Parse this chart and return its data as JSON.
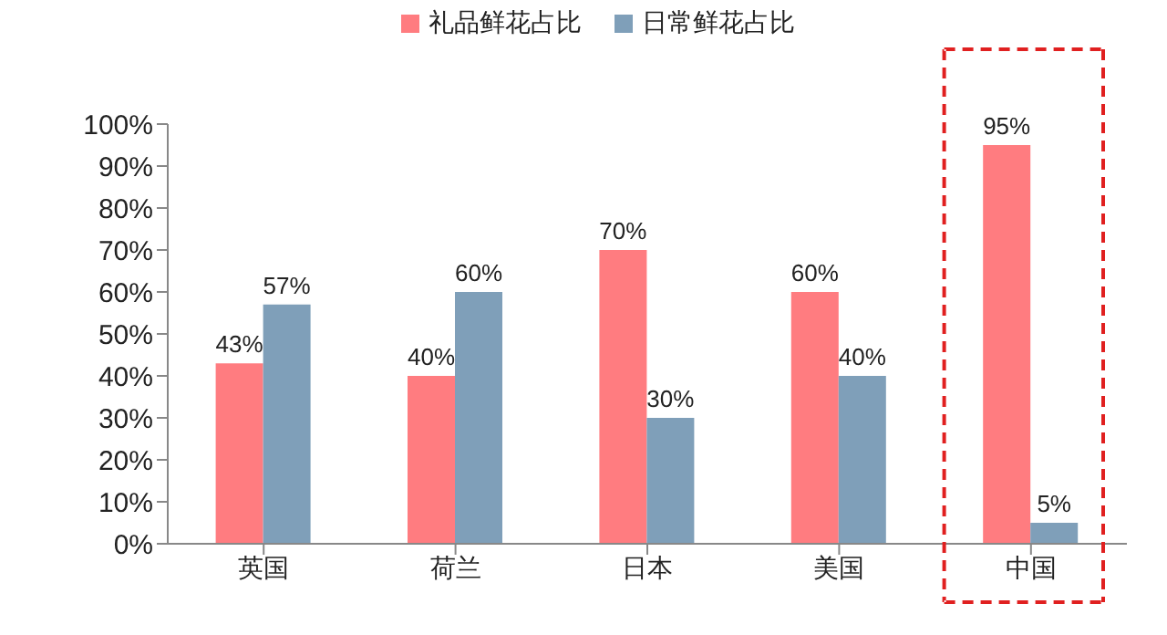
{
  "chart_data": {
    "type": "bar",
    "categories": [
      "英国",
      "荷兰",
      "日本",
      "美国",
      "中国"
    ],
    "series": [
      {
        "name": "礼品鲜花占比",
        "color": "#ff7c80",
        "values": [
          43,
          40,
          70,
          60,
          95
        ],
        "value_labels": [
          "43%",
          "40%",
          "70%",
          "60%",
          "95%"
        ]
      },
      {
        "name": "日常鲜花占比",
        "color": "#7f9fb9",
        "values": [
          57,
          60,
          30,
          40,
          5
        ],
        "value_labels": [
          "57%",
          "60%",
          "30%",
          "40%",
          "5%"
        ]
      }
    ],
    "ylim": [
      0,
      100
    ],
    "yticks": [
      {
        "value": 0,
        "label": "0%"
      },
      {
        "value": 10,
        "label": "10%"
      },
      {
        "value": 20,
        "label": "20%"
      },
      {
        "value": 30,
        "label": "30%"
      },
      {
        "value": 40,
        "label": "40%"
      },
      {
        "value": 50,
        "label": "50%"
      },
      {
        "value": 60,
        "label": "60%"
      },
      {
        "value": 70,
        "label": "70%"
      },
      {
        "value": 80,
        "label": "80%"
      },
      {
        "value": 90,
        "label": "90%"
      },
      {
        "value": 100,
        "label": "100%"
      }
    ],
    "legend": "top"
  }
}
